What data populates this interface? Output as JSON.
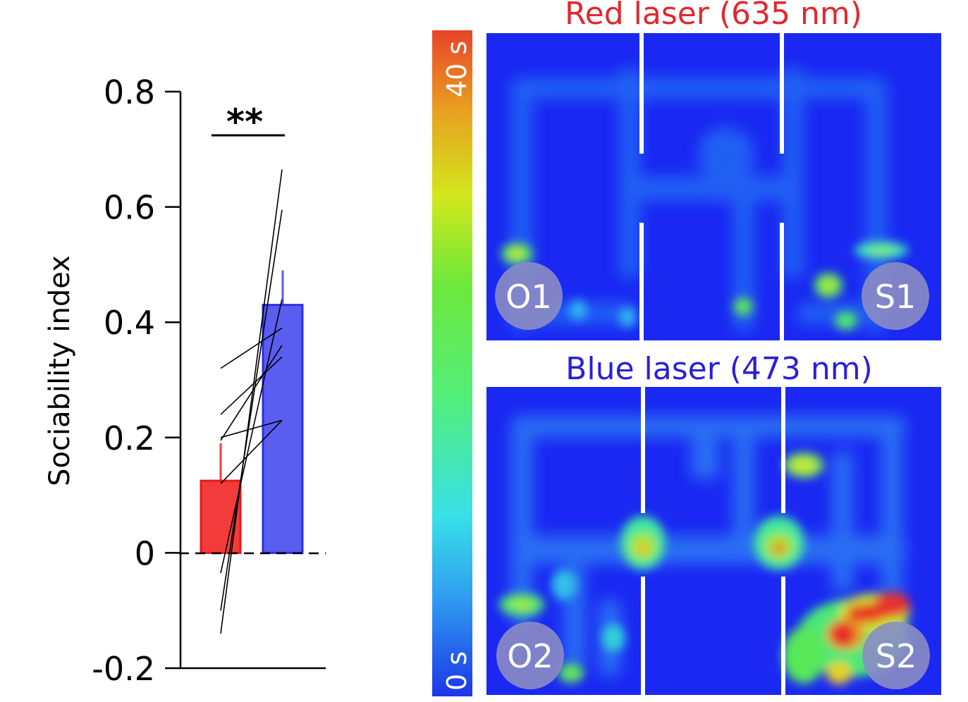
{
  "chart_data": [
    {
      "type": "bar",
      "ylabel": "Sociability index",
      "ylim": [
        -0.2,
        0.8
      ],
      "yticks": [
        0.8,
        0.6,
        0.4,
        0.2,
        0,
        -0.2
      ],
      "ytick_labels": [
        "0.8",
        "0.6",
        "0.4",
        "0.2",
        "0",
        "-0.2"
      ],
      "bars": [
        {
          "color": "#f23c3c",
          "mean": 0.125,
          "error": 0.065
        },
        {
          "color": "#5a5ef0",
          "mean": 0.43,
          "error": 0.06
        }
      ],
      "paired_lines": [
        [
          -0.14,
          0.665
        ],
        [
          -0.1,
          0.595
        ],
        [
          -0.035,
          0.44
        ],
        [
          0.24,
          0.34
        ],
        [
          0.32,
          0.39
        ],
        [
          0.195,
          0.36
        ],
        [
          0.2,
          0.23
        ],
        [
          0.12,
          0.23
        ]
      ],
      "significance": "**",
      "zero_line": "dashed"
    },
    {
      "type": "heatmap",
      "colorbar": {
        "top_label": "40 s",
        "bottom_label": "0 s",
        "colors": [
          "#1c36e8",
          "#38d8ee",
          "#58e85a",
          "#d8e81a",
          "#e84a28"
        ]
      },
      "panels": [
        {
          "title": "Red laser (635 nm)",
          "title_color": "#e0282e",
          "left_label": "O1",
          "right_label": "S1"
        },
        {
          "title": "Blue laser (473 nm)",
          "title_color": "#2a1fd8",
          "left_label": "O2",
          "right_label": "S2"
        }
      ]
    }
  ]
}
